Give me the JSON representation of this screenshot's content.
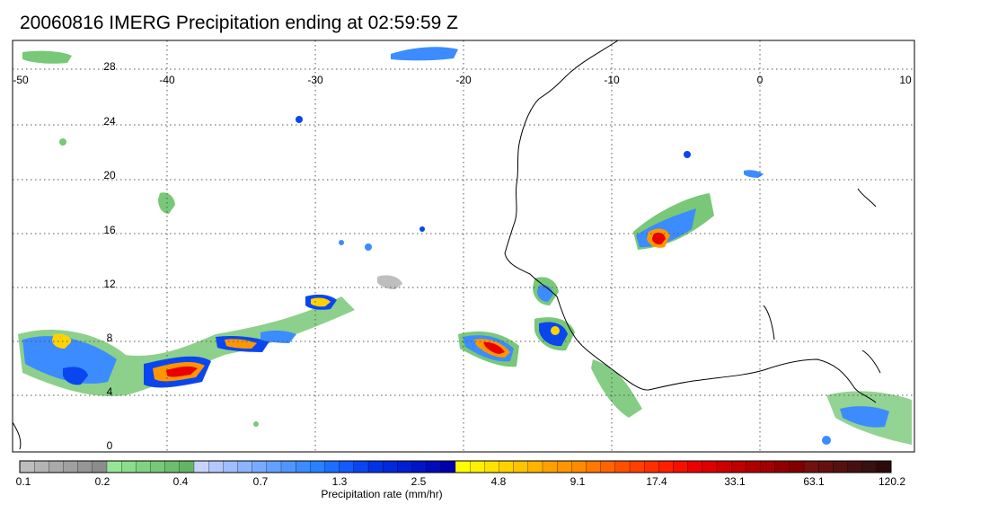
{
  "title": "20060816 IMERG Precipitation ending at 02:59:59 Z",
  "map": {
    "lon_range": [
      -50,
      10
    ],
    "lat_range": [
      -0.5,
      30
    ],
    "lon_ticks": [
      "-50",
      "-40",
      "-30",
      "-20",
      "-10",
      "0",
      "10"
    ],
    "lat_ticks": [
      "0",
      "4",
      "8",
      "12",
      "16",
      "20",
      "24",
      "28"
    ],
    "grid": true,
    "region": "tropical North Atlantic / West Africa"
  },
  "colorbar": {
    "label": "Precipitation rate (mm/hr)",
    "tick_labels": [
      "0.1",
      "0.2",
      "0.4",
      "0.7",
      "1.3",
      "2.5",
      "4.8",
      "9.1",
      "17.4",
      "33.1",
      "63.1",
      "120.2"
    ],
    "colors": [
      "#bebebe",
      "#b4b4b4",
      "#aaaaaa",
      "#a0a0a0",
      "#969696",
      "#8c8c8c",
      "#96e696",
      "#8cdc8c",
      "#82d282",
      "#78c878",
      "#6ebe6e",
      "#64b464",
      "#c8d2ff",
      "#b4c8ff",
      "#a0beff",
      "#8cb4ff",
      "#78aaff",
      "#64a0ff",
      "#5096ff",
      "#3c8cff",
      "#2882ff",
      "#1e6eff",
      "#145aff",
      "#0a46f0",
      "#0032e6",
      "#0028dc",
      "#001ed2",
      "#0014c8",
      "#000ab9",
      "#0000aa",
      "#ffff00",
      "#fff000",
      "#ffe100",
      "#ffd200",
      "#ffc300",
      "#ffb400",
      "#ffa000",
      "#ff9600",
      "#ff8c00",
      "#ff7800",
      "#ff6400",
      "#ff5000",
      "#ff4000",
      "#ff3000",
      "#ff2000",
      "#f51000",
      "#eb0000",
      "#dc0000",
      "#cd0000",
      "#be0000",
      "#af0000",
      "#a00000",
      "#910000",
      "#820000",
      "#731010",
      "#641010",
      "#551010",
      "#461010",
      "#371010",
      "#2d0a0a"
    ]
  }
}
